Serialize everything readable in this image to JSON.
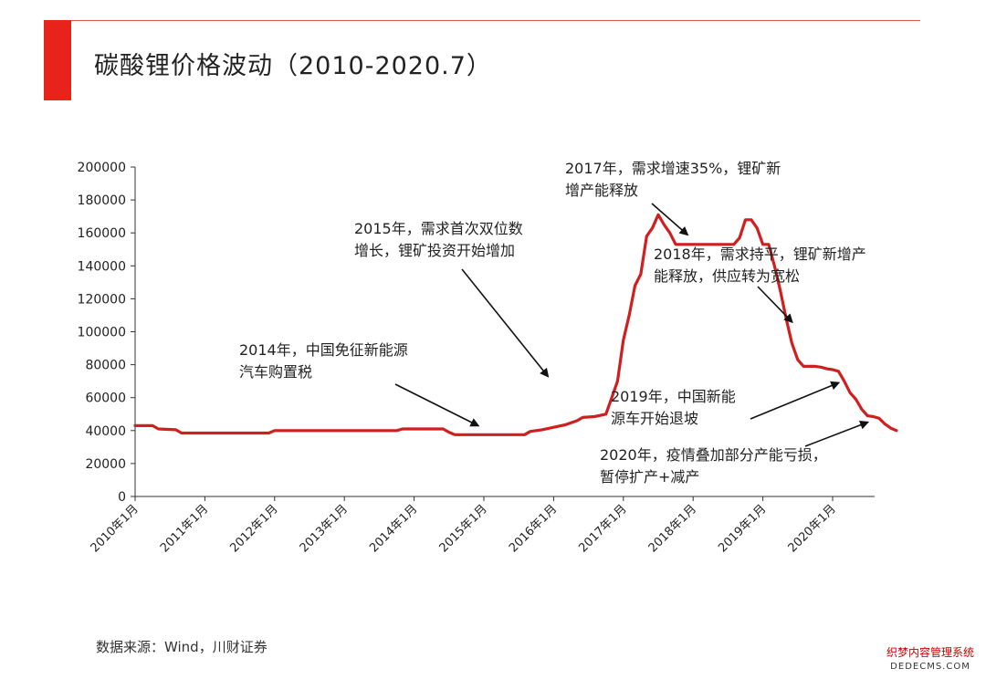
{
  "header": {
    "title": "碳酸锂价格波动（2010-2020.7）",
    "accent_color": "#e8231c"
  },
  "source": "数据来源：Wind，川财证券",
  "watermark": {
    "line1": "织梦内容管理系统",
    "line2": "DEDECMS.COM"
  },
  "chart_data": {
    "type": "line",
    "title": "",
    "xlabel": "",
    "ylabel": "",
    "ylim": [
      0,
      200000
    ],
    "y_ticks": [
      0,
      20000,
      40000,
      60000,
      80000,
      100000,
      120000,
      140000,
      160000,
      180000,
      200000
    ],
    "x_start": "2010-01",
    "x_end": "2020-08",
    "x_ticks": [
      {
        "date": "2010-01",
        "label": "2010年1月"
      },
      {
        "date": "2011-01",
        "label": "2011年1月"
      },
      {
        "date": "2012-01",
        "label": "2012年1月"
      },
      {
        "date": "2013-01",
        "label": "2013年1月"
      },
      {
        "date": "2014-01",
        "label": "2014年1月"
      },
      {
        "date": "2015-01",
        "label": "2015年1月"
      },
      {
        "date": "2016-01",
        "label": "2016年1月"
      },
      {
        "date": "2017-01",
        "label": "2017年1月"
      },
      {
        "date": "2018-01",
        "label": "2018年1月"
      },
      {
        "date": "2019-01",
        "label": "2019年1月"
      },
      {
        "date": "2020-01",
        "label": "2020年1月"
      }
    ],
    "line_color": "#d01f1f",
    "grid": false,
    "series": [
      {
        "points": [
          [
            "2010-01",
            43000
          ],
          [
            "2010-04",
            43000
          ],
          [
            "2010-05",
            41000
          ],
          [
            "2010-08",
            40500
          ],
          [
            "2010-09",
            38500
          ],
          [
            "2011-12",
            38500
          ],
          [
            "2012-01",
            40000
          ],
          [
            "2013-10",
            40000
          ],
          [
            "2013-11",
            41000
          ],
          [
            "2014-06",
            41000
          ],
          [
            "2014-07",
            39000
          ],
          [
            "2014-08",
            37500
          ],
          [
            "2015-08",
            37500
          ],
          [
            "2015-09",
            39500
          ],
          [
            "2015-11",
            40500
          ],
          [
            "2016-01",
            42000
          ],
          [
            "2016-03",
            43500
          ],
          [
            "2016-05",
            46000
          ],
          [
            "2016-06",
            48000
          ],
          [
            "2016-08",
            48500
          ],
          [
            "2016-10",
            50000
          ],
          [
            "2016-11",
            60000
          ],
          [
            "2016-12",
            70000
          ],
          [
            "2017-01",
            95000
          ],
          [
            "2017-02",
            110000
          ],
          [
            "2017-03",
            128000
          ],
          [
            "2017-04",
            135000
          ],
          [
            "2017-05",
            158000
          ],
          [
            "2017-06",
            163000
          ],
          [
            "2017-07",
            171000
          ],
          [
            "2017-08",
            165000
          ],
          [
            "2017-09",
            160000
          ],
          [
            "2017-10",
            153000
          ],
          [
            "2018-02",
            153000
          ],
          [
            "2018-03",
            153000
          ],
          [
            "2018-08",
            153000
          ],
          [
            "2018-09",
            157000
          ],
          [
            "2018-10",
            168000
          ],
          [
            "2018-11",
            168000
          ],
          [
            "2018-12",
            163000
          ],
          [
            "2019-01",
            153000
          ],
          [
            "2019-02",
            153000
          ],
          [
            "2019-03",
            140000
          ],
          [
            "2019-04",
            125000
          ],
          [
            "2019-05",
            108000
          ],
          [
            "2019-06",
            93000
          ],
          [
            "2019-07",
            83000
          ],
          [
            "2019-08",
            79000
          ],
          [
            "2019-10",
            79000
          ],
          [
            "2019-11",
            78500
          ],
          [
            "2019-12",
            77500
          ],
          [
            "2020-01",
            77000
          ],
          [
            "2020-02",
            76000
          ],
          [
            "2020-03",
            70000
          ],
          [
            "2020-04",
            63000
          ],
          [
            "2020-05",
            59000
          ],
          [
            "2020-06",
            53000
          ],
          [
            "2020-07",
            49000
          ],
          [
            "2020-08",
            48500
          ],
          [
            "2020-09",
            47500
          ],
          [
            "2020-10",
            44000
          ],
          [
            "2020-11",
            41500
          ],
          [
            "2020-12",
            40000
          ]
        ]
      }
    ],
    "annotations": [
      {
        "lines": [
          "2014年，中国免征新能源",
          "汽车购置税"
        ],
        "arrow_to": [
          "2014-12",
          43000
        ]
      },
      {
        "lines": [
          "2015年，需求首次双位数",
          "增长，锂矿投资开始增加"
        ],
        "arrow_to": [
          "2015-12",
          73000
        ]
      },
      {
        "lines": [
          "2017年，需求增速35%，锂矿新",
          "增产能释放"
        ],
        "arrow_to": [
          "2017-12",
          159000
        ]
      },
      {
        "lines": [
          "2018年，需求持平，锂矿新增产",
          "能释放，供应转为宽松"
        ],
        "arrow_to": [
          "2019-06",
          106000
        ]
      },
      {
        "lines": [
          "2019年，中国新能",
          "源车开始退坡"
        ],
        "arrow_to": [
          "2020-02",
          69000
        ]
      },
      {
        "lines": [
          "2020年，疫情叠加部分产能亏损，",
          "暂停扩产+减产"
        ],
        "arrow_to": [
          "2020-07",
          45000
        ]
      }
    ]
  }
}
